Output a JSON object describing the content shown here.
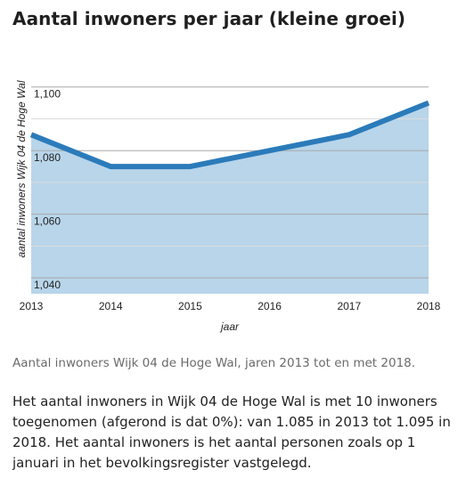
{
  "title": "Aantal inwoners per jaar (kleine groei)",
  "caption": "Aantal inwoners Wijk 04 de Hoge Wal, jaren 2013 tot en met 2018.",
  "description": "Het aantal inwoners in Wijk 04 de Hoge Wal is met 10 inwoners toegenomen (afgerond is dat 0%): van 1.085 in 2013 tot 1.095 in 2018. Het aantal inwoners is het aantal personen zoals op 1 januari in het bevolkingsregister vastgelegd.",
  "chart_data": {
    "type": "area",
    "x": [
      2013,
      2014,
      2015,
      2016,
      2017,
      2018
    ],
    "values": [
      1085,
      1075,
      1075,
      1080,
      1085,
      1095
    ],
    "xlabel": "jaar",
    "ylabel": "aantal inwoners Wijk 04 de Hoge Wal",
    "xticklabels": [
      "2013",
      "2014",
      "2015",
      "2016",
      "2017",
      "2018"
    ],
    "yticks": [
      1040,
      1060,
      1080,
      1100
    ],
    "yticklabels": [
      "1,040",
      "1,060",
      "1,080",
      "1,100"
    ],
    "ylim": [
      1035,
      1110
    ],
    "grid": true,
    "colors": {
      "line": "#2b7bba",
      "fill": "#b8d5ea",
      "grid": "#a9a9a9",
      "axis_text": "#222222"
    }
  }
}
